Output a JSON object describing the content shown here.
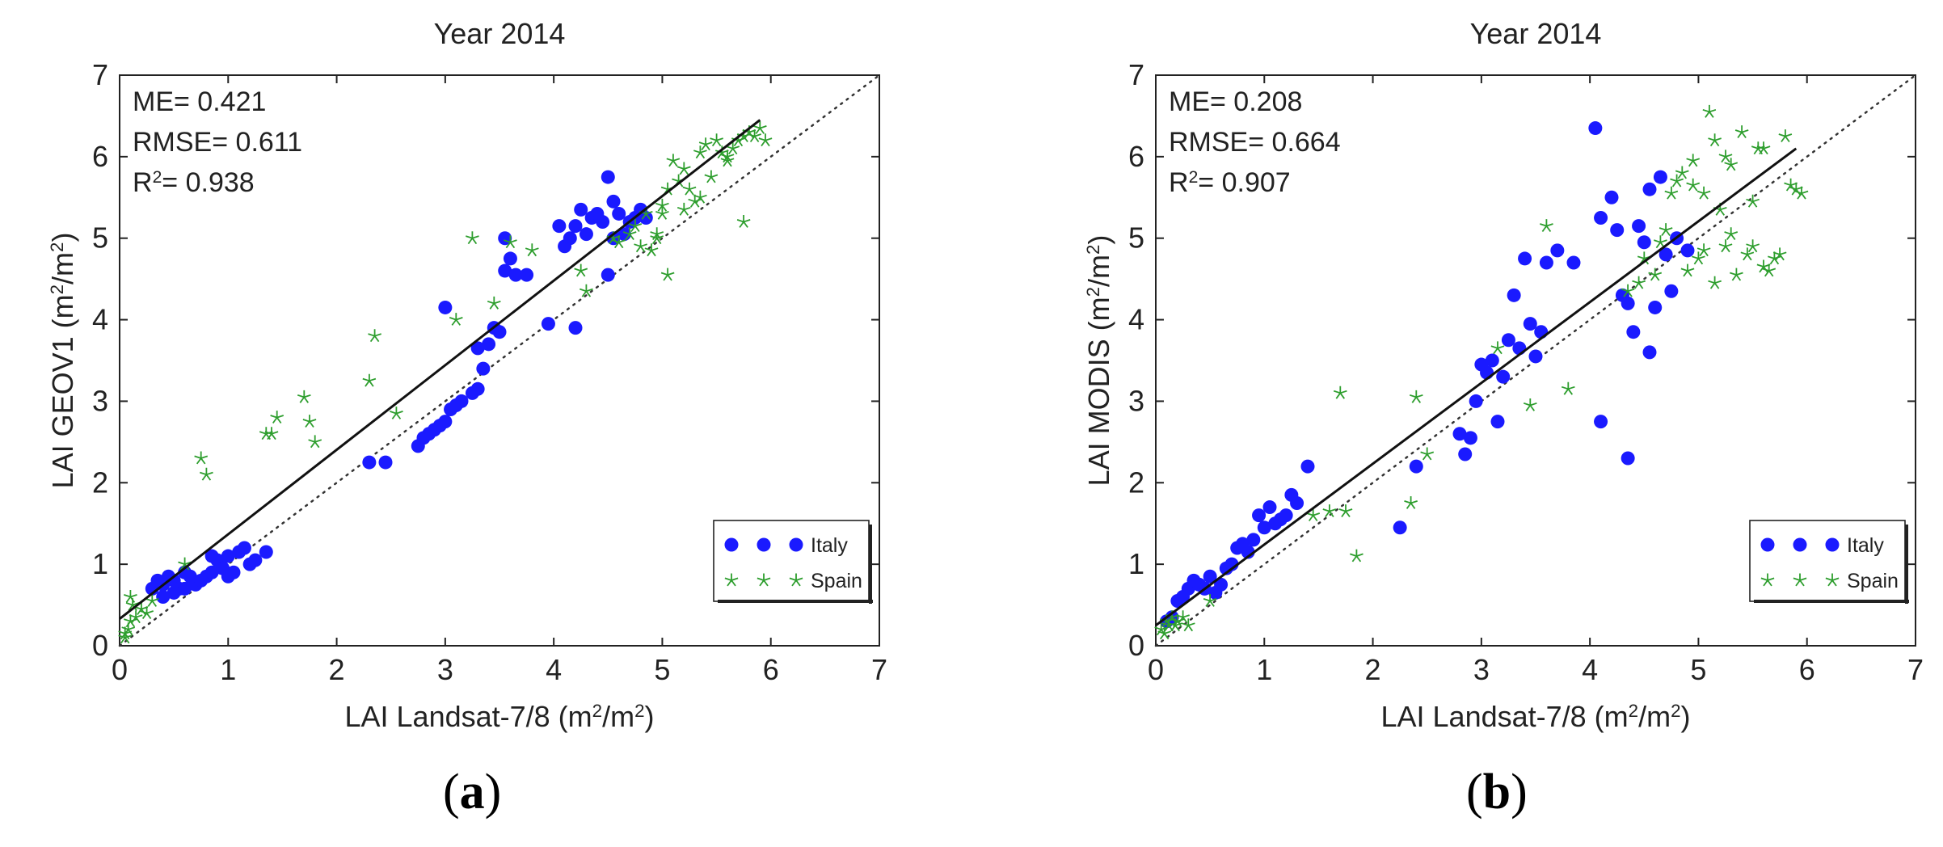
{
  "chart_data": [
    {
      "type": "scatter",
      "panel": "a",
      "caption_letter": "a",
      "title": "Year 2014",
      "xlabel": "LAI Landsat-7/8 (m²/m²)",
      "ylabel": "LAI GEOV1 (m²/m²)",
      "xlim": [
        0,
        7
      ],
      "ylim": [
        0,
        7
      ],
      "xticks": [
        0,
        1,
        2,
        3,
        4,
        5,
        6,
        7
      ],
      "yticks": [
        0,
        1,
        2,
        3,
        4,
        5,
        6,
        7
      ],
      "stats": {
        "me": "ME= 0.421",
        "rmse": "RMSE= 0.611",
        "r2": "R²= 0.938"
      },
      "one_to_one_line": [
        [
          0,
          0
        ],
        [
          7,
          7
        ]
      ],
      "fit_line": [
        [
          0,
          0.33
        ],
        [
          5.9,
          6.45
        ]
      ],
      "legend": [
        {
          "label": "Italy",
          "color": "#1a1aff",
          "marker": "circle"
        },
        {
          "label": "Spain",
          "color": "#2e9e2e",
          "marker": "star"
        }
      ],
      "series": [
        {
          "name": "Italy",
          "color": "#1a1aff",
          "marker": "circle",
          "x": [
            0.3,
            0.35,
            0.4,
            0.45,
            0.5,
            0.55,
            0.6,
            0.65,
            0.7,
            0.75,
            0.8,
            0.85,
            0.9,
            0.95,
            1.0,
            1.05,
            1.1,
            1.15,
            1.2,
            1.25,
            1.35,
            0.4,
            0.5,
            0.6,
            0.85,
            0.95,
            1.0,
            2.3,
            2.45,
            2.75,
            2.8,
            2.85,
            2.9,
            2.95,
            3.0,
            3.05,
            3.1,
            3.15,
            3.25,
            3.3,
            3.35,
            3.4,
            3.45,
            3.5,
            3.55,
            3.6,
            3.65,
            3.75,
            3.95,
            4.1,
            4.15,
            4.2,
            4.25,
            4.3,
            4.35,
            4.4,
            4.45,
            4.5,
            4.55,
            4.6,
            4.65,
            4.7,
            4.75,
            4.8,
            4.85,
            3.0,
            3.3,
            3.55,
            4.05,
            4.2,
            4.5,
            4.55
          ],
          "y": [
            0.7,
            0.8,
            0.75,
            0.85,
            0.8,
            0.7,
            0.9,
            0.85,
            0.75,
            0.8,
            0.85,
            1.1,
            1.05,
            0.95,
            1.1,
            0.9,
            1.15,
            1.2,
            1.0,
            1.05,
            1.15,
            0.6,
            0.65,
            0.7,
            0.9,
            0.95,
            0.85,
            2.25,
            2.25,
            2.45,
            2.55,
            2.6,
            2.65,
            2.7,
            2.75,
            2.9,
            2.95,
            3.0,
            3.1,
            3.15,
            3.4,
            3.7,
            3.9,
            3.85,
            4.6,
            4.75,
            4.55,
            4.55,
            3.95,
            4.9,
            5.0,
            5.15,
            5.35,
            5.05,
            5.25,
            5.3,
            5.2,
            5.75,
            5.45,
            5.3,
            5.05,
            5.2,
            5.25,
            5.35,
            5.25,
            4.15,
            3.65,
            5.0,
            5.15,
            3.9,
            4.55,
            5.0
          ]
        },
        {
          "name": "Spain",
          "color": "#2e9e2e",
          "marker": "star",
          "x": [
            0.05,
            0.08,
            0.1,
            0.12,
            0.15,
            0.1,
            0.2,
            0.25,
            0.3,
            0.05,
            0.6,
            0.75,
            0.8,
            1.35,
            1.45,
            1.4,
            1.7,
            1.75,
            1.8,
            2.35,
            2.3,
            2.55,
            3.1,
            3.25,
            3.45,
            3.6,
            3.8,
            4.25,
            4.3,
            4.55,
            4.6,
            4.7,
            4.75,
            4.8,
            4.85,
            4.9,
            4.95,
            5.0,
            5.05,
            5.1,
            5.15,
            5.2,
            5.25,
            5.3,
            5.35,
            5.4,
            5.45,
            5.5,
            5.55,
            5.6,
            5.65,
            5.7,
            5.75,
            5.8,
            5.85,
            5.9,
            5.95,
            5.6,
            5.75,
            5.05,
            5.2,
            5.35,
            4.95,
            5.0
          ],
          "y": [
            0.15,
            0.2,
            0.3,
            0.5,
            0.35,
            0.6,
            0.45,
            0.4,
            0.55,
            0.1,
            1.0,
            2.3,
            2.1,
            2.6,
            2.8,
            2.6,
            3.05,
            2.75,
            2.5,
            3.8,
            3.25,
            2.85,
            4.0,
            5.0,
            4.2,
            4.95,
            4.85,
            4.6,
            4.35,
            5.0,
            4.95,
            5.05,
            5.15,
            4.9,
            5.3,
            4.85,
            5.05,
            5.3,
            4.55,
            5.95,
            5.7,
            5.35,
            5.6,
            5.45,
            6.05,
            6.15,
            5.75,
            6.2,
            6.05,
            5.95,
            6.1,
            6.2,
            6.25,
            6.3,
            6.25,
            6.35,
            6.2,
            6.0,
            5.2,
            5.6,
            5.85,
            5.5,
            5.0,
            5.4
          ]
        }
      ]
    },
    {
      "type": "scatter",
      "panel": "b",
      "caption_letter": "b",
      "title": "Year 2014",
      "xlabel": "LAI Landsat-7/8 (m²/m²)",
      "ylabel": "LAI MODIS (m²/m²)",
      "xlim": [
        0,
        7
      ],
      "ylim": [
        0,
        7
      ],
      "xticks": [
        0,
        1,
        2,
        3,
        4,
        5,
        6,
        7
      ],
      "yticks": [
        0,
        1,
        2,
        3,
        4,
        5,
        6,
        7
      ],
      "stats": {
        "me": "ME= 0.208",
        "rmse": "RMSE= 0.664",
        "r2": "R²= 0.907"
      },
      "one_to_one_line": [
        [
          0,
          0
        ],
        [
          7,
          7
        ]
      ],
      "fit_line": [
        [
          0,
          0.25
        ],
        [
          5.9,
          6.1
        ]
      ],
      "legend": [
        {
          "label": "Italy",
          "color": "#1a1aff",
          "marker": "circle"
        },
        {
          "label": "Spain",
          "color": "#2e9e2e",
          "marker": "star"
        }
      ],
      "series": [
        {
          "name": "Italy",
          "color": "#1a1aff",
          "marker": "circle",
          "x": [
            0.1,
            0.15,
            0.2,
            0.25,
            0.3,
            0.35,
            0.4,
            0.45,
            0.5,
            0.55,
            0.6,
            0.65,
            0.7,
            0.75,
            0.8,
            0.85,
            0.9,
            0.95,
            1.0,
            1.05,
            1.1,
            1.15,
            1.2,
            1.25,
            1.3,
            1.4,
            2.25,
            2.4,
            2.8,
            2.85,
            2.9,
            2.95,
            3.0,
            3.05,
            3.1,
            3.15,
            3.2,
            3.25,
            3.3,
            3.35,
            3.4,
            3.45,
            3.5,
            3.55,
            3.6,
            3.7,
            3.85,
            4.05,
            4.1,
            4.2,
            4.25,
            4.3,
            4.35,
            4.4,
            4.45,
            4.5,
            4.55,
            4.6,
            4.65,
            4.7,
            4.75,
            4.8,
            4.9,
            4.1,
            4.35,
            4.55
          ],
          "y": [
            0.3,
            0.35,
            0.55,
            0.6,
            0.7,
            0.8,
            0.75,
            0.7,
            0.85,
            0.65,
            0.75,
            0.95,
            1.0,
            1.2,
            1.25,
            1.15,
            1.3,
            1.6,
            1.45,
            1.7,
            1.5,
            1.55,
            1.6,
            1.85,
            1.75,
            2.2,
            1.45,
            2.2,
            2.6,
            2.35,
            2.55,
            3.0,
            3.45,
            3.35,
            3.5,
            2.75,
            3.3,
            3.75,
            4.3,
            3.65,
            4.75,
            3.95,
            3.55,
            3.85,
            4.7,
            4.85,
            4.7,
            6.35,
            5.25,
            5.5,
            5.1,
            4.3,
            4.2,
            3.85,
            5.15,
            4.95,
            5.6,
            4.15,
            5.75,
            4.8,
            4.35,
            5.0,
            4.85,
            2.75,
            2.3,
            3.6
          ]
        },
        {
          "name": "Spain",
          "color": "#2e9e2e",
          "marker": "star",
          "x": [
            0.05,
            0.08,
            0.1,
            0.12,
            0.15,
            0.18,
            0.2,
            0.25,
            0.3,
            0.5,
            1.45,
            1.6,
            1.7,
            1.75,
            1.85,
            2.35,
            2.4,
            2.5,
            3.15,
            3.45,
            3.6,
            3.8,
            4.35,
            4.45,
            4.5,
            4.6,
            4.65,
            4.7,
            4.75,
            4.8,
            4.85,
            4.9,
            4.95,
            5.0,
            5.05,
            5.1,
            5.15,
            5.2,
            5.25,
            5.3,
            5.35,
            5.4,
            5.45,
            5.5,
            5.55,
            5.6,
            5.65,
            5.7,
            5.75,
            5.8,
            5.85,
            5.9,
            5.95,
            5.05,
            5.15,
            5.25,
            5.5,
            5.6,
            5.3,
            4.95
          ],
          "y": [
            0.2,
            0.15,
            0.3,
            0.25,
            0.35,
            0.25,
            0.3,
            0.35,
            0.25,
            0.55,
            1.6,
            1.65,
            3.1,
            1.65,
            1.1,
            1.75,
            3.05,
            2.35,
            3.65,
            2.95,
            5.15,
            3.15,
            4.35,
            4.45,
            4.75,
            4.55,
            4.95,
            5.1,
            5.55,
            5.7,
            5.8,
            4.6,
            5.65,
            4.75,
            5.55,
            6.55,
            6.2,
            5.35,
            6.0,
            5.9,
            4.55,
            6.3,
            4.8,
            4.9,
            6.1,
            6.1,
            4.6,
            4.75,
            4.8,
            6.25,
            5.65,
            5.6,
            5.55,
            4.85,
            4.45,
            4.9,
            5.45,
            4.65,
            5.05,
            5.95
          ]
        }
      ]
    }
  ]
}
